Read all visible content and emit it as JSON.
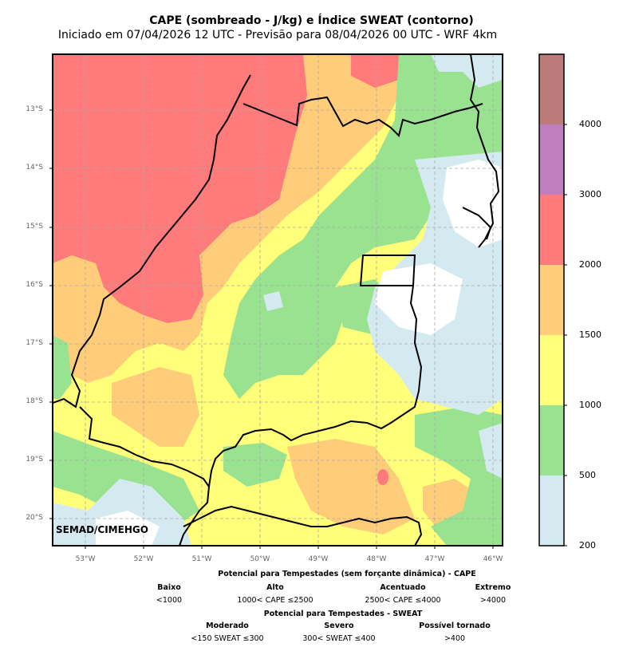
{
  "header": {
    "title": "CAPE (sombreado - J/kg) e Índice SWEAT (contorno)",
    "subtitle": "Iniciado em 07/04/2026 12 UTC - Previsão para 08/04/2026 00 UTC - WRF 4km"
  },
  "map": {
    "lat_labels": [
      "13°S",
      "14°S",
      "15°S",
      "16°S",
      "17°S",
      "18°S",
      "19°S",
      "20°S"
    ],
    "lon_labels": [
      "53°W",
      "52°W",
      "51°W",
      "50°W",
      "49°W",
      "48°W",
      "47°W",
      "46°W"
    ],
    "credit": "SEMAD/CIMEHGO",
    "colors": {
      "c200": "#d4eaf0",
      "c500": "#98e290",
      "c1000": "#ffff7a",
      "c1500": "#ffcc7a",
      "c2000": "#ff7a7a",
      "c3000": "#bf7fbf",
      "c4000": "#bc7b78",
      "border": "#000000",
      "grid": "#aaaaaa"
    }
  },
  "colorbar": {
    "labels": [
      "200",
      "500",
      "1000",
      "1500",
      "2000",
      "3000",
      "4000"
    ]
  },
  "legend": {
    "cape_title": "Potencial para Tempestades (sem forçante dinâmica) - CAPE",
    "cape_items": [
      {
        "name": "Baixo",
        "range": "<1000"
      },
      {
        "name": "Alto",
        "range": "1000< CAPE ≤2500"
      },
      {
        "name": "Acentuado",
        "range": "2500< CAPE ≤4000"
      },
      {
        "name": "Extremo",
        "range": ">4000"
      }
    ],
    "sweat_title": "Potencial para Tempestades - SWEAT",
    "sweat_items": [
      {
        "name": "Moderado",
        "range": "<150 SWEAT ≤300"
      },
      {
        "name": "Severo",
        "range": "300< SWEAT ≤400"
      },
      {
        "name": "Possível tornado",
        "range": ">400"
      }
    ]
  }
}
